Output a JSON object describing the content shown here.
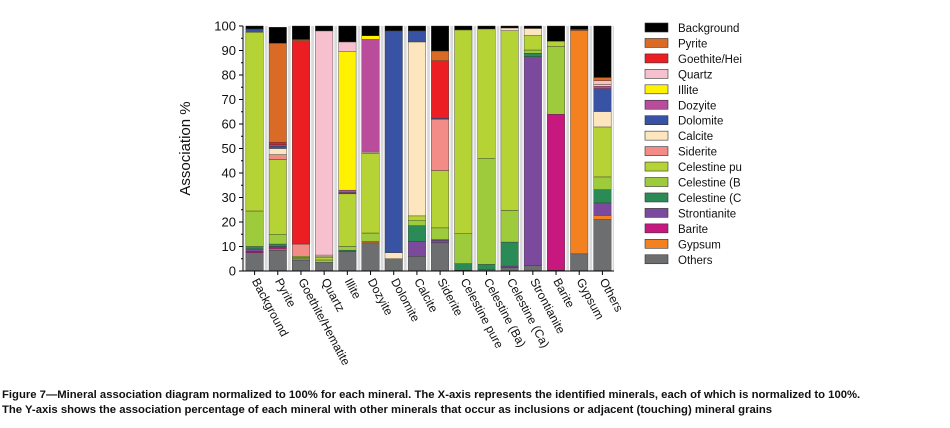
{
  "chart_data": {
    "type": "bar",
    "stacked": true,
    "normalized": true,
    "title": "",
    "xlabel": "",
    "ylabel": "Association %",
    "ylim": [
      0,
      100
    ],
    "yticks": [
      "0",
      "10",
      "20",
      "30",
      "40",
      "50",
      "60",
      "70",
      "80",
      "90",
      "100"
    ],
    "legend_position": "right",
    "categories": [
      "Background",
      "Pyrite",
      "Goethite/Hematite",
      "Quartz",
      "Illite",
      "Dozyite",
      "Dolomite",
      "Calcite",
      "Siderite",
      "Celestine pure",
      "Celestine (Ba)",
      "Celestine (Ca)",
      "Strontianite",
      "Barite",
      "Gypsum",
      "Others"
    ],
    "series": [
      {
        "name": "Others",
        "legend_label": "Others",
        "color": "#6d6e70",
        "values": [
          7.5,
          8.5,
          4.5,
          3.5,
          8,
          11.5,
          5,
          6,
          11.5,
          0.3,
          0.5,
          1.4,
          2.2,
          0.3,
          7,
          21
        ]
      },
      {
        "name": "Gypsum",
        "legend_label": "Gypsum",
        "color": "#f48120",
        "values": [
          0,
          0.5,
          0.5,
          0,
          0,
          0.5,
          0,
          0,
          0,
          0,
          0,
          0,
          0,
          0,
          91.1,
          1.7
        ]
      },
      {
        "name": "Barite",
        "legend_label": "Barite",
        "color": "#c7187f",
        "values": [
          0.5,
          0.5,
          0,
          0,
          0,
          0,
          0,
          0,
          0,
          0,
          0,
          0,
          0,
          63.7,
          0,
          0
        ]
      },
      {
        "name": "Strontianite",
        "legend_label": "Strontianite",
        "color": "#7b4a9c",
        "values": [
          1,
          0.5,
          0,
          0,
          0,
          0,
          0,
          6,
          1.1,
          0,
          0,
          0.6,
          85.3,
          0,
          0,
          5.1
        ]
      },
      {
        "name": "Celestine (Ca)",
        "legend_label": "Celestine (C",
        "color": "#2b8b57",
        "values": [
          1,
          1,
          0,
          0,
          0.5,
          0,
          0,
          6.5,
          0.2,
          2.7,
          2.2,
          9.8,
          1.4,
          0,
          0,
          5.4
        ]
      },
      {
        "name": "Celestine (Ba)",
        "legend_label": "Celestine (B",
        "color": "#9dcb3c",
        "values": [
          14.5,
          4,
          0.5,
          1,
          1.5,
          3.5,
          0,
          2,
          4.8,
          12.2,
          43.3,
          12.9,
          1.3,
          27.6,
          0,
          5.2
        ]
      },
      {
        "name": "Celestine pure",
        "legend_label": "Celestine pu",
        "color": "#b5d334",
        "values": [
          73,
          30.5,
          0.5,
          1,
          21.5,
          32.5,
          0,
          2,
          23.4,
          83.2,
          52.8,
          73.4,
          5.9,
          2.2,
          0,
          20.4
        ]
      },
      {
        "name": "Siderite",
        "legend_label": "Siderite",
        "color": "#f38b86",
        "values": [
          0,
          2,
          5,
          0,
          0,
          0,
          0,
          0,
          21,
          0,
          0,
          0,
          0,
          0,
          0,
          0
        ]
      },
      {
        "name": "Calcite",
        "legend_label": "Calcite",
        "color": "#fde5bd",
        "values": [
          0,
          2.5,
          0,
          0.5,
          0,
          0.5,
          2.5,
          71,
          0,
          0,
          0,
          1.1,
          2.9,
          0,
          0,
          6.3
        ]
      },
      {
        "name": "Dolomite",
        "legend_label": "Dolomite",
        "color": "#3953a4",
        "values": [
          1,
          1,
          0,
          0,
          0.5,
          0,
          90.5,
          4.5,
          0.4,
          0,
          0,
          0,
          0,
          0,
          0,
          9.3
        ]
      },
      {
        "name": "Dozyite",
        "legend_label": "Dozyite",
        "color": "#b94d9c",
        "values": [
          0.3,
          0.5,
          0,
          0,
          1,
          46,
          0,
          0,
          0,
          0,
          0,
          0,
          0,
          0,
          0,
          1
        ]
      },
      {
        "name": "Illite",
        "legend_label": "Illite",
        "color": "#fff200",
        "values": [
          0,
          0,
          0,
          0.5,
          56.5,
          1.5,
          0,
          0,
          0,
          0,
          0,
          0,
          0,
          0,
          0,
          0.7
        ]
      },
      {
        "name": "Quartz",
        "legend_label": "Quartz",
        "color": "#f7c0cf",
        "values": [
          0,
          0,
          0,
          91.5,
          4,
          0,
          0,
          0,
          0,
          0,
          0,
          0,
          0,
          0,
          0,
          1.6
        ]
      },
      {
        "name": "Goethite/Hematite",
        "legend_label": "Goethite/Hei",
        "color": "#ec1e24",
        "values": [
          0,
          1,
          83,
          0,
          0,
          0,
          0,
          0,
          23.4,
          0,
          0,
          0,
          0,
          0,
          0,
          0
        ]
      },
      {
        "name": "Pyrite",
        "legend_label": "Pyrite",
        "color": "#d96b27",
        "values": [
          0,
          40.5,
          0.5,
          0,
          0,
          0,
          0,
          0,
          4,
          0,
          0,
          0,
          0,
          0,
          0.5,
          1.3
        ]
      },
      {
        "name": "Background",
        "legend_label": "Background",
        "color": "#000000",
        "values": [
          1.2,
          6.5,
          5.5,
          2,
          6.5,
          4,
          2,
          2,
          10.2,
          1.6,
          1.2,
          0.8,
          1,
          6.2,
          1.4,
          21
        ]
      }
    ]
  },
  "caption": {
    "line1": "Figure 7—Mineral association diagram normalized to 100% for each mineral. The X-axis represents the identified minerals, each of which is normalized to 100%.",
    "line2": "The Y-axis shows the association percentage of each mineral with other minerals that occur as inclusions or adjacent (touching) mineral grains"
  }
}
